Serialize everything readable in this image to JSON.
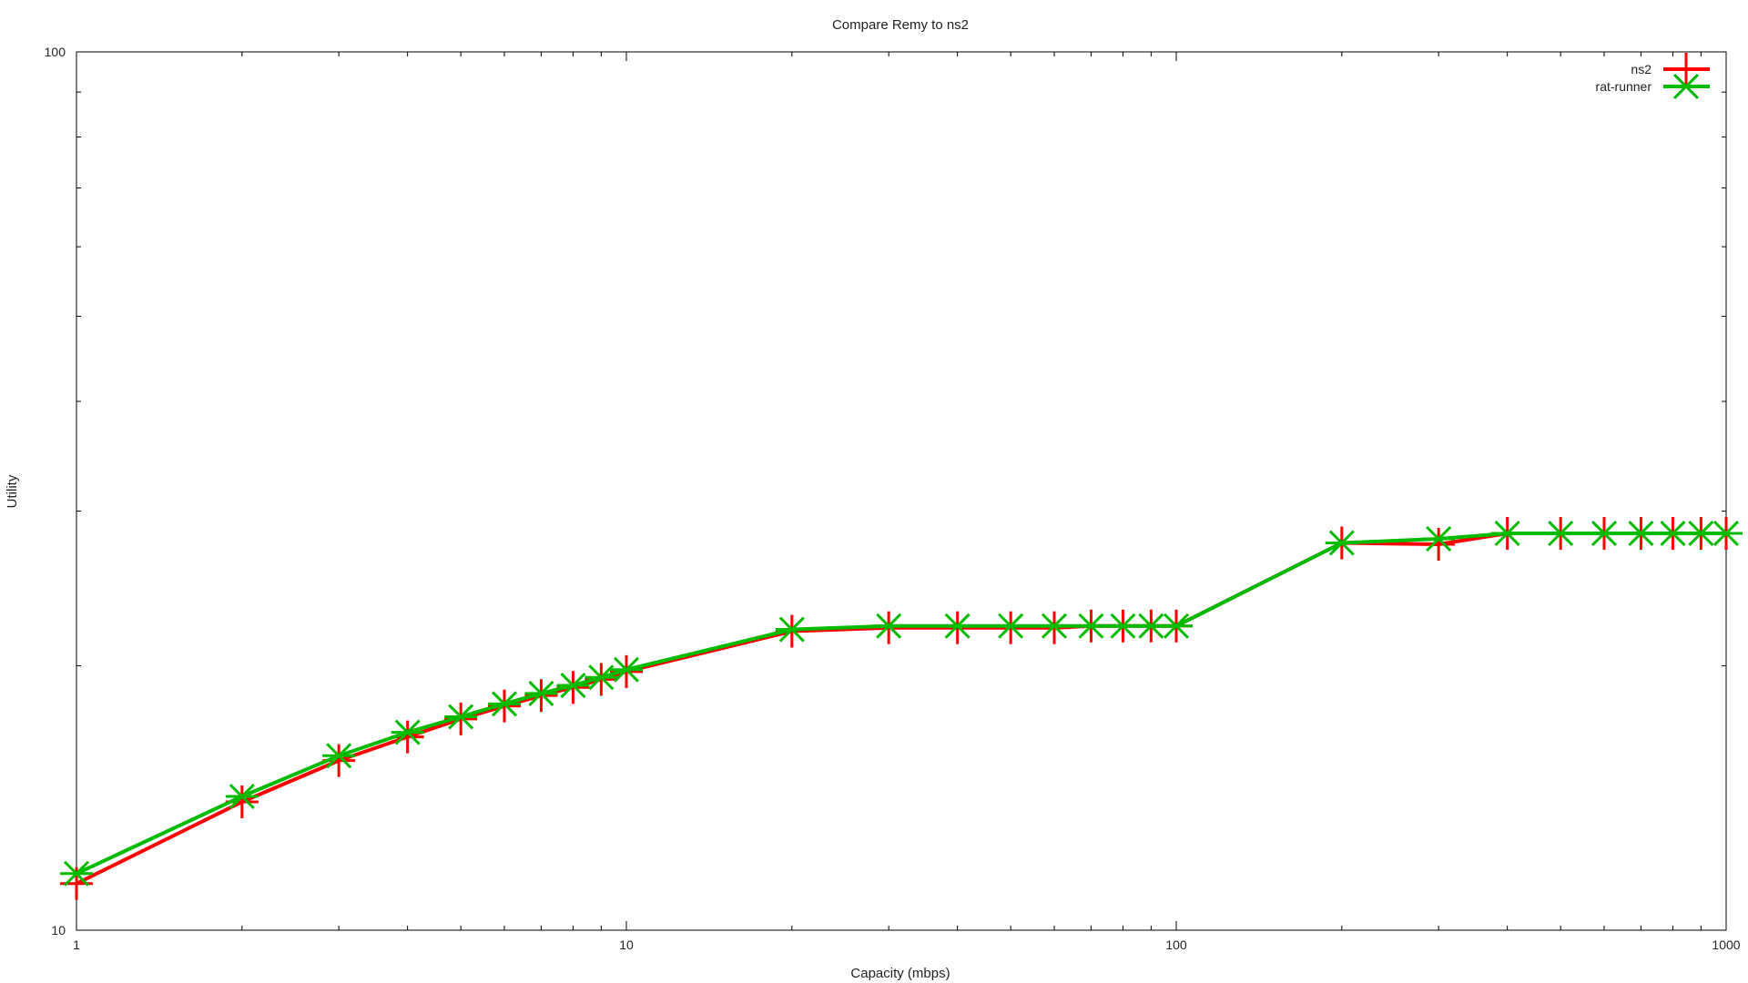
{
  "chart_data": {
    "type": "line",
    "title": "Compare Remy to ns2",
    "xlabel": "Capacity (mbps)",
    "ylabel": "Utility",
    "xscale": "log",
    "yscale": "log",
    "xlim": [
      1,
      1000
    ],
    "ylim": [
      10,
      100
    ],
    "x_ticks": [
      "1",
      "10",
      "100",
      "1000"
    ],
    "y_ticks": [
      "10",
      "100"
    ],
    "grid": false,
    "legend_position": "top-right",
    "series": [
      {
        "name": "ns2",
        "color": "#ff0000",
        "marker": "plus",
        "x": [
          1,
          2,
          3,
          4,
          5,
          6,
          7,
          8,
          9,
          10,
          20,
          30,
          40,
          50,
          60,
          70,
          80,
          90,
          100,
          200,
          300,
          400,
          500,
          600,
          700,
          800,
          900,
          1000
        ],
        "y": [
          11.3,
          14.0,
          15.6,
          16.6,
          17.4,
          18.0,
          18.5,
          18.9,
          19.3,
          19.7,
          21.9,
          22.1,
          22.1,
          22.1,
          22.1,
          22.2,
          22.2,
          22.2,
          22.2,
          27.6,
          27.5,
          28.3,
          28.3,
          28.3,
          28.3,
          28.3,
          28.3,
          28.3
        ]
      },
      {
        "name": "rat-runner",
        "color": "#00bb00",
        "marker": "star",
        "x": [
          1,
          2,
          3,
          4,
          5,
          6,
          7,
          8,
          9,
          10,
          20,
          30,
          40,
          50,
          60,
          70,
          80,
          90,
          100,
          200,
          300,
          400,
          500,
          600,
          700,
          800,
          900,
          1000
        ],
        "y": [
          11.6,
          14.2,
          15.8,
          16.8,
          17.5,
          18.1,
          18.6,
          19.0,
          19.4,
          19.8,
          22.0,
          22.2,
          22.2,
          22.2,
          22.2,
          22.2,
          22.2,
          22.2,
          22.2,
          27.6,
          27.9,
          28.3,
          28.3,
          28.3,
          28.3,
          28.3,
          28.3,
          28.3
        ]
      }
    ]
  }
}
